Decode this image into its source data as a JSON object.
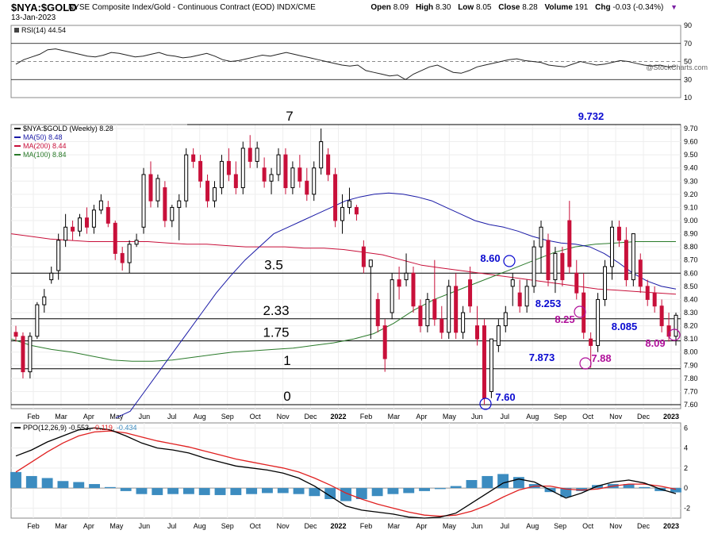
{
  "header": {
    "symbol": "$NYA:$GOLD",
    "description": "NYSE Composite Index/Gold - Continuous Contract (EOD)  INDX/CME",
    "date": "13-Jan-2023",
    "open_label": "Open",
    "open": "8.09",
    "high_label": "High",
    "high": "8.30",
    "low_label": "Low",
    "low": "8.05",
    "close_label": "Close",
    "close": "8.28",
    "volume_label": "Volume",
    "volume": "191",
    "chg_label": "Chg",
    "chg": "-0.03 (-0.34%)",
    "watermark": "@StockCharts.com"
  },
  "colors": {
    "up": "#000000",
    "down": "#c8103a",
    "ma50": "#1a1aa6",
    "ma200": "#c8103a",
    "ma100": "#2a7a2a",
    "fib_blue": "#0a0ad0",
    "fib_magenta": "#b0109a",
    "hist": "#3c8cc0"
  },
  "chart_data": [
    {
      "type": "line",
      "title": "RSI(14) 44.54",
      "legend": [
        "RSI(14) 44.54"
      ],
      "yticks": [
        "90",
        "70",
        "50",
        "30",
        "10"
      ],
      "ylim": [
        10,
        90
      ],
      "series": [
        {
          "name": "RSI(14)",
          "values": [
            47,
            52,
            55,
            58,
            63,
            64,
            62,
            60,
            58,
            56,
            55,
            57,
            60,
            59,
            57,
            55,
            56,
            58,
            60,
            57,
            56,
            54,
            55,
            57,
            59,
            56,
            52,
            50,
            51,
            53,
            55,
            57,
            56,
            58,
            60,
            58,
            56,
            54,
            52,
            50,
            48,
            46,
            45,
            46,
            40,
            38,
            36,
            34,
            35,
            30,
            36,
            40,
            44,
            46,
            42,
            38,
            37,
            40,
            44,
            46,
            48,
            50,
            52,
            53,
            51,
            50,
            49,
            46,
            45,
            44,
            47,
            50,
            48,
            46,
            47,
            49,
            51,
            50,
            48,
            46,
            45,
            46,
            44,
            44.54
          ]
        }
      ]
    },
    {
      "type": "line",
      "title": "$NYA:$GOLD (Weekly) 8.28",
      "legend": [
        "$NYA:$GOLD (Weekly) 8.28",
        "MA(50) 8.48",
        "MA(200) 8.44",
        "MA(100) 8.84"
      ],
      "yticks": [
        "9.70",
        "9.60",
        "9.50",
        "9.40",
        "9.30",
        "9.20",
        "9.10",
        "9.00",
        "8.90",
        "8.80",
        "8.70",
        "8.60",
        "8.50",
        "8.40",
        "8.30",
        "8.20",
        "8.10",
        "8.00",
        "7.90",
        "7.80",
        "7.70",
        "7.60"
      ],
      "ylim": [
        7.57,
        9.73
      ],
      "xlabels": [
        "Feb",
        "Mar",
        "Apr",
        "May",
        "Jun",
        "Jul",
        "Aug",
        "Sep",
        "Oct",
        "Nov",
        "Dec",
        "2022",
        "Feb",
        "Mar",
        "Apr",
        "May",
        "Jun",
        "Jul",
        "Aug",
        "Sep",
        "Oct",
        "Nov",
        "Dec",
        "2023"
      ],
      "candles": [
        [
          8.15,
          8.2,
          8.08,
          8.12
        ],
        [
          8.12,
          8.15,
          7.8,
          7.85
        ],
        [
          7.85,
          8.15,
          7.8,
          8.12
        ],
        [
          8.12,
          8.38,
          8.1,
          8.36
        ],
        [
          8.36,
          8.48,
          8.3,
          8.42
        ],
        [
          8.55,
          8.65,
          8.52,
          8.6
        ],
        [
          8.62,
          8.9,
          8.55,
          8.85
        ],
        [
          8.85,
          9.05,
          8.8,
          8.95
        ],
        [
          8.95,
          9.0,
          8.85,
          8.92
        ],
        [
          8.92,
          9.05,
          8.88,
          9.02
        ],
        [
          9.02,
          9.1,
          8.9,
          8.95
        ],
        [
          8.95,
          9.12,
          8.9,
          9.08
        ],
        [
          9.08,
          9.2,
          9.05,
          9.15
        ],
        [
          9.1,
          9.15,
          8.95,
          8.98
        ],
        [
          8.98,
          9.0,
          8.7,
          8.75
        ],
        [
          8.75,
          8.8,
          8.62,
          8.68
        ],
        [
          8.68,
          8.85,
          8.6,
          8.82
        ],
        [
          8.82,
          8.9,
          8.8,
          8.85
        ],
        [
          8.95,
          9.4,
          8.9,
          9.35
        ],
        [
          9.35,
          9.45,
          9.1,
          9.15
        ],
        [
          9.15,
          9.35,
          9.1,
          9.32
        ],
        [
          9.25,
          9.3,
          8.95,
          9.0
        ],
        [
          9.0,
          9.12,
          8.95,
          9.1
        ],
        [
          9.1,
          9.2,
          8.85,
          9.15
        ],
        [
          9.15,
          9.55,
          9.1,
          9.5
        ],
        [
          9.5,
          9.55,
          9.4,
          9.45
        ],
        [
          9.45,
          9.5,
          9.25,
          9.3
        ],
        [
          9.3,
          9.35,
          9.1,
          9.15
        ],
        [
          9.15,
          9.3,
          9.1,
          9.25
        ],
        [
          9.25,
          9.5,
          9.2,
          9.45
        ],
        [
          9.45,
          9.55,
          9.3,
          9.35
        ],
        [
          9.35,
          9.45,
          9.2,
          9.25
        ],
        [
          9.25,
          9.6,
          9.2,
          9.55
        ],
        [
          9.55,
          9.65,
          9.4,
          9.45
        ],
        [
          9.45,
          9.6,
          9.4,
          9.55
        ],
        [
          9.4,
          9.48,
          9.25,
          9.3
        ],
        [
          9.3,
          9.4,
          9.2,
          9.35
        ],
        [
          9.35,
          9.55,
          9.3,
          9.5
        ],
        [
          9.5,
          9.55,
          9.2,
          9.25
        ],
        [
          9.25,
          9.45,
          9.2,
          9.4
        ],
        [
          9.4,
          9.5,
          9.25,
          9.3
        ],
        [
          9.3,
          9.4,
          9.15,
          9.2
        ],
        [
          9.2,
          9.45,
          9.15,
          9.4
        ],
        [
          9.4,
          9.7,
          9.35,
          9.6
        ],
        [
          9.5,
          9.55,
          9.3,
          9.35
        ],
        [
          9.35,
          9.4,
          8.95,
          9.0
        ],
        [
          9.0,
          9.2,
          8.9,
          9.1
        ],
        [
          9.1,
          9.25,
          9.05,
          9.15
        ],
        [
          9.1,
          9.12,
          9.0,
          9.05
        ],
        [
          8.8,
          8.85,
          8.6,
          8.65
        ],
        [
          8.65,
          8.7,
          8.1,
          8.7
        ],
        [
          8.4,
          8.45,
          8.15,
          8.2
        ],
        [
          8.2,
          8.25,
          7.85,
          7.95
        ],
        [
          8.3,
          8.6,
          8.25,
          8.55
        ],
        [
          8.55,
          8.65,
          8.4,
          8.5
        ],
        [
          8.55,
          8.75,
          8.5,
          8.6
        ],
        [
          8.6,
          8.65,
          8.3,
          8.35
        ],
        [
          8.35,
          8.4,
          8.15,
          8.2
        ],
        [
          8.2,
          8.45,
          8.15,
          8.4
        ],
        [
          8.4,
          8.7,
          8.2,
          8.25
        ],
        [
          8.25,
          8.35,
          8.1,
          8.15
        ],
        [
          8.15,
          8.55,
          8.1,
          8.5
        ],
        [
          8.5,
          8.6,
          8.1,
          8.15
        ],
        [
          8.15,
          8.35,
          8.1,
          8.3
        ],
        [
          8.55,
          8.65,
          8.3,
          8.35
        ],
        [
          8.2,
          8.35,
          8.05,
          8.1
        ],
        [
          8.2,
          8.25,
          7.6,
          7.65
        ],
        [
          7.7,
          8.1,
          7.65,
          8.1
        ],
        [
          8.05,
          8.25,
          8.0,
          8.2
        ],
        [
          8.2,
          8.35,
          8.15,
          8.3
        ],
        [
          8.5,
          8.6,
          8.35,
          8.55
        ],
        [
          8.45,
          8.55,
          8.3,
          8.35
        ],
        [
          8.35,
          8.55,
          8.3,
          8.5
        ],
        [
          8.5,
          8.85,
          8.45,
          8.8
        ],
        [
          8.8,
          9.0,
          8.6,
          8.95
        ],
        [
          8.85,
          8.9,
          8.5,
          8.55
        ],
        [
          8.55,
          8.8,
          8.45,
          8.75
        ],
        [
          8.75,
          8.8,
          8.5,
          8.55
        ],
        [
          9.0,
          9.15,
          8.6,
          8.65
        ],
        [
          8.6,
          8.7,
          8.4,
          8.45
        ],
        [
          8.45,
          8.6,
          8.1,
          8.15
        ],
        [
          8.1,
          8.15,
          7.88,
          8.05
        ],
        [
          8.05,
          8.45,
          8.0,
          8.4
        ],
        [
          8.4,
          8.7,
          8.35,
          8.65
        ],
        [
          8.65,
          9.0,
          8.55,
          8.95
        ],
        [
          8.95,
          9.0,
          8.8,
          8.85
        ],
        [
          8.85,
          8.95,
          8.5,
          8.55
        ],
        [
          8.55,
          8.9,
          8.5,
          8.9
        ],
        [
          8.7,
          8.75,
          8.45,
          8.5
        ],
        [
          8.5,
          8.55,
          8.35,
          8.4
        ],
        [
          8.45,
          8.5,
          8.3,
          8.35
        ],
        [
          8.35,
          8.4,
          8.15,
          8.2
        ],
        [
          8.2,
          8.3,
          8.08,
          8.12
        ],
        [
          8.12,
          8.3,
          8.05,
          8.28
        ]
      ],
      "ma50": [
        7.5,
        7.55,
        7.7,
        7.85,
        8.0,
        8.15,
        8.3,
        8.45,
        8.58,
        8.7,
        8.8,
        8.9,
        8.95,
        9.0,
        9.05,
        9.1,
        9.15,
        9.18,
        9.2,
        9.21,
        9.2,
        9.18,
        9.15,
        9.1,
        9.05,
        9.0,
        8.97,
        8.95,
        8.92,
        8.88,
        8.85,
        8.83,
        8.82,
        8.8,
        8.75,
        8.68,
        8.6,
        8.54,
        8.5,
        8.48
      ],
      "ma200": [
        8.9,
        8.88,
        8.86,
        8.85,
        8.84,
        8.84,
        8.84,
        8.84,
        8.83,
        8.82,
        8.82,
        8.81,
        8.8,
        8.8,
        8.8,
        8.79,
        8.79,
        8.78,
        8.76,
        8.74,
        8.7,
        8.66,
        8.64,
        8.62,
        8.6,
        8.58,
        8.56,
        8.54,
        8.52,
        8.5,
        8.48,
        8.47,
        8.46,
        8.45,
        8.44
      ],
      "ma100": [
        8.1,
        8.05,
        8.02,
        8.0,
        7.97,
        7.94,
        7.93,
        7.93,
        7.94,
        7.96,
        7.98,
        8.0,
        8.01,
        8.02,
        8.03,
        8.05,
        8.07,
        8.1,
        8.14,
        8.22,
        8.32,
        8.4,
        8.46,
        8.52,
        8.58,
        8.64,
        8.7,
        8.76,
        8.8,
        8.82,
        8.83,
        8.84,
        8.84,
        8.84
      ],
      "hlines": [
        {
          "label": "7",
          "value": 9.73
        },
        {
          "label": "3.5",
          "value": 8.6
        },
        {
          "label": "2.33",
          "value": 8.253
        },
        {
          "label": "1.75",
          "value": 8.085
        },
        {
          "label": "1",
          "value": 7.873
        },
        {
          "label": "0",
          "value": 7.6
        }
      ],
      "annotations_blue": [
        "9.732",
        "8.60",
        "8.253",
        "8.085",
        "7.873",
        "7.60"
      ],
      "annotations_magenta": [
        "8.25",
        "7.88",
        "8.09"
      ]
    },
    {
      "type": "line",
      "title": "PPO(12,26,9) -0.553, -0.119, -0.434",
      "legend": [
        "PPO(12,26,9) -0.553",
        "-0.119",
        "-0.434"
      ],
      "yticks": [
        "6",
        "4",
        "2",
        "0",
        "-2"
      ],
      "ylim": [
        -3,
        6.5
      ],
      "xlabels": [
        "Feb",
        "Mar",
        "Apr",
        "May",
        "Jun",
        "Jul",
        "Aug",
        "Sep",
        "Oct",
        "Nov",
        "Dec",
        "2022",
        "Feb",
        "Mar",
        "Apr",
        "May",
        "Jun",
        "Jul",
        "Aug",
        "Sep",
        "Oct",
        "Nov",
        "Dec",
        "2023"
      ],
      "series": [
        {
          "name": "PPO",
          "values": [
            3.2,
            3.8,
            4.6,
            5.2,
            5.8,
            6.0,
            5.8,
            5.2,
            4.5,
            4.0,
            3.8,
            3.5,
            3.0,
            2.6,
            2.2,
            2.0,
            1.8,
            1.5,
            1.0,
            0.2,
            -0.8,
            -1.8,
            -2.2,
            -2.4,
            -2.6,
            -2.9,
            -3.0,
            -2.9,
            -2.5,
            -1.5,
            -0.5,
            0.5,
            0.9,
            0.6,
            -0.2,
            -1.0,
            -0.5,
            0.2,
            0.6,
            0.8,
            0.5,
            -0.1,
            -0.55
          ]
        },
        {
          "name": "Signal",
          "values": [
            1.6,
            2.6,
            3.6,
            4.5,
            5.2,
            5.6,
            5.7,
            5.5,
            5.1,
            4.7,
            4.4,
            4.1,
            3.7,
            3.3,
            2.9,
            2.6,
            2.3,
            2.0,
            1.6,
            1.0,
            0.3,
            -0.5,
            -1.1,
            -1.6,
            -2.0,
            -2.4,
            -2.7,
            -2.8,
            -2.7,
            -2.3,
            -1.7,
            -0.9,
            -0.2,
            0.2,
            0.2,
            -0.1,
            -0.2,
            -0.1,
            0.2,
            0.4,
            0.4,
            0.2,
            -0.12
          ]
        },
        {
          "name": "Histogram",
          "values": [
            1.6,
            1.2,
            1.0,
            0.7,
            0.6,
            0.4,
            0.1,
            -0.3,
            -0.6,
            -0.7,
            -0.6,
            -0.6,
            -0.7,
            -0.7,
            -0.7,
            -0.6,
            -0.5,
            -0.5,
            -0.6,
            -0.8,
            -1.1,
            -1.3,
            -1.1,
            -0.8,
            -0.6,
            -0.5,
            -0.3,
            -0.1,
            0.2,
            0.8,
            1.2,
            1.4,
            1.1,
            0.4,
            -0.4,
            -0.9,
            -0.3,
            0.3,
            0.4,
            0.4,
            0.1,
            -0.3,
            -0.43
          ]
        }
      ]
    }
  ]
}
